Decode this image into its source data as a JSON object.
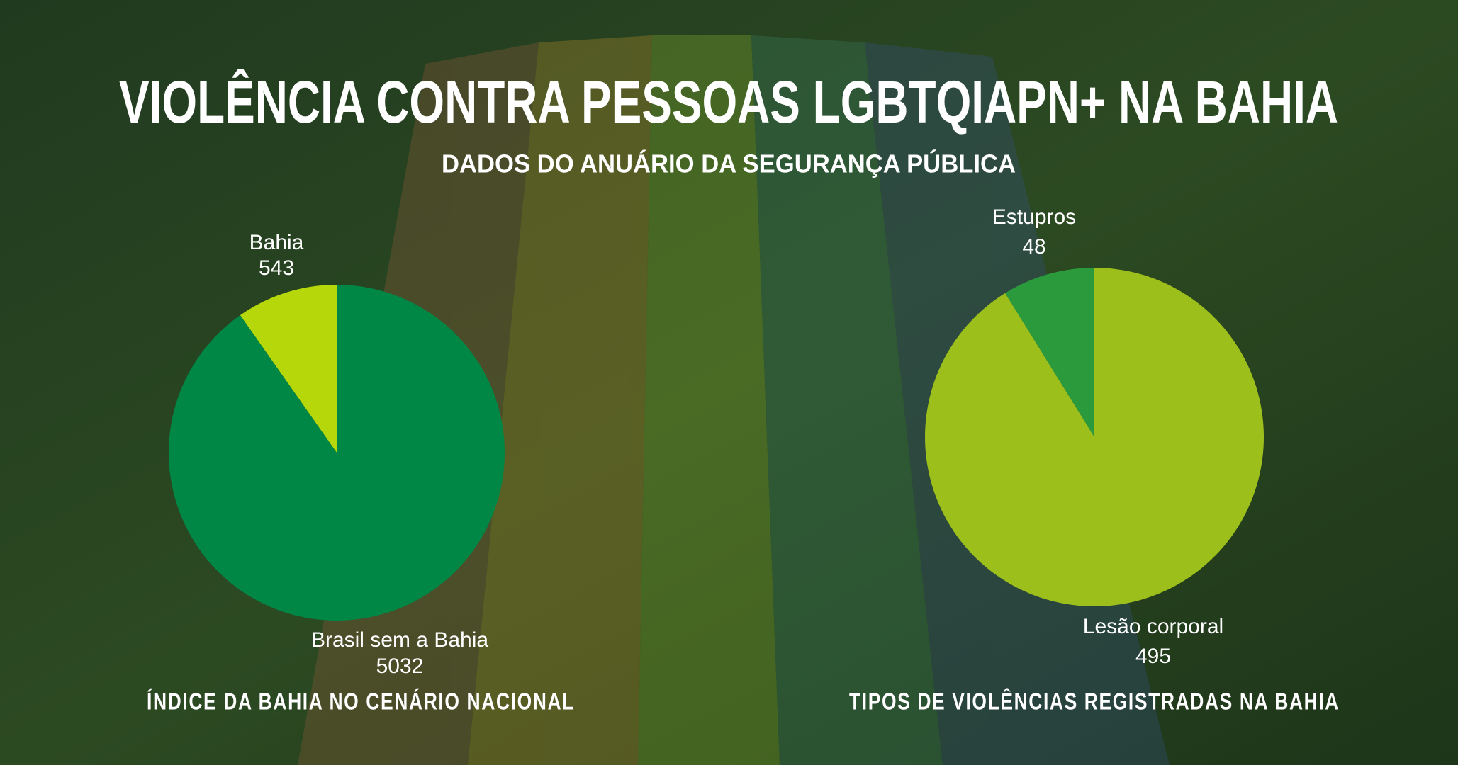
{
  "title": "VIOLÊNCIA CONTRA PESSOAS LGBTQIAPN+ NA BAHIA",
  "subtitle": "DADOS DO ANUÁRIO DA SEGURANÇA PÚBLICA",
  "chart_data": [
    {
      "type": "pie",
      "title": "ÍNDICE DA BAHIA NO CENÁRIO NACIONAL",
      "categories": [
        "Bahia",
        "Brasil sem a Bahia"
      ],
      "values": [
        543,
        5032
      ],
      "colors": [
        "#b6d80a",
        "#008645"
      ]
    },
    {
      "type": "pie",
      "title": "TIPOS DE VIOLÊNCIAS REGISTRADAS NA BAHIA",
      "categories": [
        "Estupros",
        "Lesão corporal"
      ],
      "values": [
        48,
        495
      ],
      "colors": [
        "#2a9a3c",
        "#9dbf1c"
      ]
    }
  ]
}
